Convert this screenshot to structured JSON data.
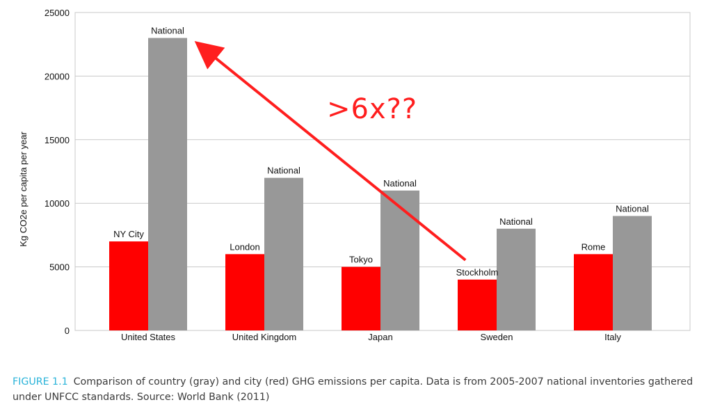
{
  "chart_data": {
    "type": "bar",
    "title": "",
    "xlabel": "",
    "ylabel": "Kg CO2e per capita per year",
    "ylim": [
      0,
      25000
    ],
    "yticks": [
      0,
      5000,
      10000,
      15000,
      20000,
      25000
    ],
    "grid": true,
    "categories": [
      "United States",
      "United Kingdom",
      "Japan",
      "Sweden",
      "Italy"
    ],
    "series": [
      {
        "name": "city",
        "color": "#ff0000",
        "labels": [
          "NY City",
          "London",
          "Tokyo",
          "Stockholm",
          "Rome"
        ],
        "values": [
          7000,
          6000,
          5000,
          4000,
          6000
        ]
      },
      {
        "name": "national",
        "color": "#989898",
        "labels": [
          "National",
          "National",
          "National",
          "National",
          "National"
        ],
        "values": [
          23000,
          12000,
          11000,
          8000,
          9000
        ]
      }
    ],
    "annotation": {
      "text": ">6x??",
      "color": "#ff1e1e",
      "from_category": "Sweden",
      "to_category": "United States"
    }
  },
  "caption": {
    "label": "FIGURE 1.1",
    "text": "Comparison of country (gray) and city (red) GHG emissions per capita. Data is from 2005-2007 national inventories gathered under UNFCC standards. Source: World Bank (2011)"
  }
}
